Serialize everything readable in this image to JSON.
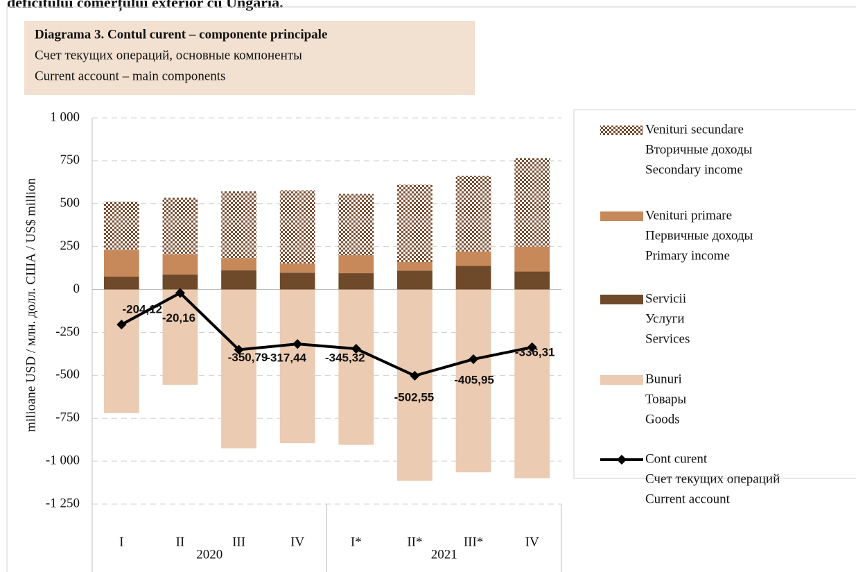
{
  "heading": "deficitului comerțului exterior cu Ungaria.",
  "chart_data": {
    "type": "stacked-bar-line",
    "title": "Diagrama 3. Contul curent – componente principale",
    "subtitle": [
      "Счет текущих операций, основные компоненты",
      "Current account – main components"
    ],
    "ylabel": "milioane USD / млн. долл. США / US$ million",
    "categories": [
      "I",
      "II",
      "III",
      "IV",
      "I*",
      "II*",
      "III*",
      "IV"
    ],
    "group_labels": [
      "2020",
      "2021"
    ],
    "ylim": [
      -1250,
      1000
    ],
    "yticks": [
      {
        "value": 1000,
        "label": "1 000"
      },
      750,
      500,
      250,
      0,
      -250,
      -500,
      -750,
      {
        "value": -1000,
        "label": "-1 000"
      },
      {
        "value": -1250,
        "label": "-1 250"
      }
    ],
    "grid": true,
    "legend": "right",
    "series": [
      {
        "name": [
          "Venituri secundare",
          "Вторичные доходы",
          "Secondary income"
        ],
        "kind": "bar",
        "color": "#7b4f33",
        "pattern": "checker",
        "values": [
          282,
          330,
          390,
          426,
          357,
          450,
          440,
          515
        ]
      },
      {
        "name": [
          "Venituri primare",
          "Первичные доходы",
          "Primary income"
        ],
        "kind": "bar",
        "color": "#c8895a",
        "values": [
          155,
          117,
          70,
          54,
          105,
          50,
          84,
          145
        ]
      },
      {
        "name": [
          "Servicii",
          "Услуги",
          "Services"
        ],
        "kind": "bar",
        "color": "#6e4a2a",
        "values": [
          75,
          88,
          112,
          98,
          95,
          110,
          138,
          105
        ]
      },
      {
        "name": [
          "Bunuri",
          "Товары",
          "Goods"
        ],
        "kind": "bar",
        "color": "#ebcbb1",
        "values": [
          -720,
          -555,
          -925,
          -895,
          -905,
          -1115,
          -1065,
          -1100
        ]
      },
      {
        "name": [
          "Cont curent",
          "Счет текущих операций",
          "Current account"
        ],
        "kind": "line",
        "color": "#000000",
        "values": [
          -204.12,
          -20.16,
          -350.79,
          -317.44,
          -345.32,
          -502.55,
          -405.95,
          -336.31
        ],
        "value_labels": [
          "-204,12",
          "-20,16",
          "-350,79",
          "-317,44",
          "-345,32",
          "-502,55",
          "-405,95",
          "-336,31"
        ]
      }
    ]
  }
}
